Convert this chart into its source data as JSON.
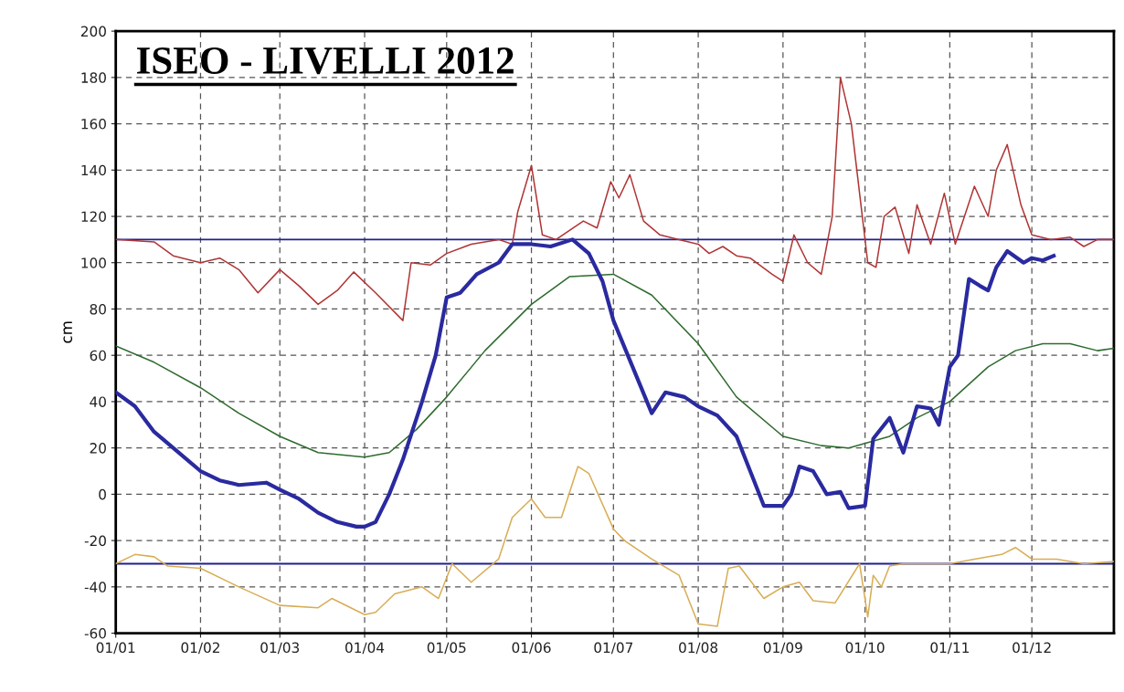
{
  "chart_data": {
    "type": "line",
    "title": "ISEO - LIVELLI 2012",
    "ylabel": "cm",
    "xlim": [
      "2012-01-01",
      "2012-12-31"
    ],
    "xticks": [
      {
        "value": "2012-01-01",
        "label": "01/01"
      },
      {
        "value": "2012-02-01",
        "label": "01/02"
      },
      {
        "value": "2012-03-01",
        "label": "01/03"
      },
      {
        "value": "2012-04-01",
        "label": "01/04"
      },
      {
        "value": "2012-05-01",
        "label": "01/05"
      },
      {
        "value": "2012-06-01",
        "label": "01/06"
      },
      {
        "value": "2012-07-01",
        "label": "01/07"
      },
      {
        "value": "2012-08-01",
        "label": "01/08"
      },
      {
        "value": "2012-09-01",
        "label": "01/09"
      },
      {
        "value": "2012-10-01",
        "label": "01/10"
      },
      {
        "value": "2012-11-01",
        "label": "01/11"
      },
      {
        "value": "2012-12-01",
        "label": "01/12"
      }
    ],
    "ylim": [
      -60,
      200
    ],
    "yticks": [
      -60,
      -40,
      -20,
      0,
      20,
      40,
      60,
      80,
      100,
      120,
      140,
      160,
      180,
      200
    ],
    "grid": true,
    "ref_lines": [
      {
        "axis": "y",
        "value": 110,
        "color": "#1f1f8f"
      },
      {
        "axis": "y",
        "value": -30,
        "color": "#1f1f8f"
      }
    ],
    "series": [
      {
        "color": "#b03535",
        "x": [
          "2012-01-01",
          "2012-01-15",
          "2012-01-22",
          "2012-02-01",
          "2012-02-08",
          "2012-02-15",
          "2012-02-22",
          "2012-03-01",
          "2012-03-08",
          "2012-03-15",
          "2012-03-22",
          "2012-03-28",
          "2012-04-05",
          "2012-04-15",
          "2012-04-18",
          "2012-04-25",
          "2012-05-01",
          "2012-05-10",
          "2012-05-20",
          "2012-05-25",
          "2012-05-27",
          "2012-06-01",
          "2012-06-05",
          "2012-06-10",
          "2012-06-20",
          "2012-06-25",
          "2012-06-30",
          "2012-07-03",
          "2012-07-07",
          "2012-07-12",
          "2012-07-18",
          "2012-07-25",
          "2012-08-01",
          "2012-08-05",
          "2012-08-10",
          "2012-08-15",
          "2012-08-20",
          "2012-08-28",
          "2012-09-01",
          "2012-09-05",
          "2012-09-10",
          "2012-09-15",
          "2012-09-19",
          "2012-09-22",
          "2012-09-26",
          "2012-10-02",
          "2012-10-05",
          "2012-10-08",
          "2012-10-12",
          "2012-10-17",
          "2012-10-20",
          "2012-10-25",
          "2012-10-30",
          "2012-11-03",
          "2012-11-10",
          "2012-11-15",
          "2012-11-18",
          "2012-11-22",
          "2012-11-27",
          "2012-12-01",
          "2012-12-08",
          "2012-12-15",
          "2012-12-20",
          "2012-12-25",
          "2012-12-31"
        ],
        "values": [
          110,
          109,
          103,
          100,
          102,
          97,
          87,
          97,
          90,
          82,
          88,
          96,
          87,
          75,
          100,
          99,
          104,
          108,
          110,
          108,
          122,
          142,
          112,
          110,
          118,
          115,
          135,
          128,
          138,
          118,
          112,
          110,
          108,
          104,
          107,
          103,
          102,
          95,
          92,
          112,
          100,
          95,
          120,
          180,
          160,
          100,
          98,
          120,
          124,
          104,
          125,
          108,
          130,
          108,
          133,
          120,
          140,
          151,
          125,
          112,
          110,
          111,
          107,
          110,
          110
        ]
      },
      {
        "color": "#2e6b2e",
        "x": [
          "2012-01-01",
          "2012-01-15",
          "2012-02-01",
          "2012-02-15",
          "2012-03-01",
          "2012-03-15",
          "2012-04-01",
          "2012-04-10",
          "2012-04-20",
          "2012-05-01",
          "2012-05-15",
          "2012-06-01",
          "2012-06-15",
          "2012-07-01",
          "2012-07-15",
          "2012-08-01",
          "2012-08-15",
          "2012-09-01",
          "2012-09-15",
          "2012-09-25",
          "2012-10-10",
          "2012-10-20",
          "2012-11-01",
          "2012-11-15",
          "2012-11-25",
          "2012-12-05",
          "2012-12-15",
          "2012-12-25",
          "2012-12-31"
        ],
        "values": [
          64,
          57,
          46,
          35,
          25,
          18,
          16,
          18,
          28,
          42,
          62,
          82,
          94,
          95,
          86,
          65,
          42,
          25,
          21,
          20,
          25,
          33,
          40,
          55,
          62,
          65,
          65,
          62,
          63
        ]
      },
      {
        "color": "#d8ad55",
        "x": [
          "2012-01-01",
          "2012-01-08",
          "2012-01-15",
          "2012-01-20",
          "2012-02-01",
          "2012-02-15",
          "2012-03-01",
          "2012-03-15",
          "2012-03-20",
          "2012-04-01",
          "2012-04-05",
          "2012-04-12",
          "2012-04-22",
          "2012-04-28",
          "2012-05-03",
          "2012-05-10",
          "2012-05-20",
          "2012-05-25",
          "2012-06-01",
          "2012-06-06",
          "2012-06-12",
          "2012-06-18",
          "2012-06-22",
          "2012-07-01",
          "2012-07-05",
          "2012-07-15",
          "2012-07-25",
          "2012-08-01",
          "2012-08-08",
          "2012-08-12",
          "2012-08-16",
          "2012-08-25",
          "2012-09-01",
          "2012-09-07",
          "2012-09-12",
          "2012-09-20",
          "2012-09-29",
          "2012-10-02",
          "2012-10-04",
          "2012-10-07",
          "2012-10-10",
          "2012-10-15",
          "2012-11-01",
          "2012-11-10",
          "2012-11-20",
          "2012-11-25",
          "2012-12-01",
          "2012-12-10",
          "2012-12-20",
          "2012-12-31"
        ],
        "values": [
          -30,
          -26,
          -27,
          -31,
          -32,
          -40,
          -48,
          -49,
          -45,
          -52,
          -51,
          -43,
          -40,
          -45,
          -30,
          -38,
          -28,
          -10,
          -2,
          -10,
          -10,
          12,
          9,
          -15,
          -20,
          -28,
          -35,
          -56,
          -57,
          -32,
          -31,
          -45,
          -40,
          -38,
          -46,
          -47,
          -30,
          -53,
          -35,
          -40,
          -31,
          -30,
          -30,
          -28,
          -26,
          -23,
          -28,
          -28,
          -30,
          -29
        ]
      },
      {
        "color": "#2a2aa0",
        "x": [
          "2012-01-01",
          "2012-01-08",
          "2012-01-15",
          "2012-01-22",
          "2012-02-01",
          "2012-02-08",
          "2012-02-15",
          "2012-02-25",
          "2012-03-01",
          "2012-03-08",
          "2012-03-15",
          "2012-03-22",
          "2012-03-29",
          "2012-04-01",
          "2012-04-05",
          "2012-04-10",
          "2012-04-15",
          "2012-04-22",
          "2012-04-27",
          "2012-05-01",
          "2012-05-06",
          "2012-05-12",
          "2012-05-20",
          "2012-05-25",
          "2012-06-01",
          "2012-06-08",
          "2012-06-16",
          "2012-06-22",
          "2012-06-27",
          "2012-07-01",
          "2012-07-08",
          "2012-07-15",
          "2012-07-20",
          "2012-07-27",
          "2012-08-01",
          "2012-08-08",
          "2012-08-15",
          "2012-08-20",
          "2012-08-25",
          "2012-09-01",
          "2012-09-04",
          "2012-09-07",
          "2012-09-12",
          "2012-09-17",
          "2012-09-22",
          "2012-09-25",
          "2012-10-01",
          "2012-10-04",
          "2012-10-10",
          "2012-10-15",
          "2012-10-20",
          "2012-10-25",
          "2012-10-28",
          "2012-11-01",
          "2012-11-04",
          "2012-11-08",
          "2012-11-12",
          "2012-11-15",
          "2012-11-18",
          "2012-11-22",
          "2012-11-28",
          "2012-12-01",
          "2012-12-05",
          "2012-12-09"
        ],
        "values": [
          44,
          38,
          27,
          20,
          10,
          6,
          4,
          5,
          2,
          -2,
          -8,
          -12,
          -14,
          -14,
          -12,
          0,
          15,
          40,
          60,
          85,
          87,
          95,
          100,
          108,
          108,
          107,
          110,
          104,
          92,
          75,
          55,
          35,
          44,
          42,
          38,
          34,
          25,
          10,
          -5,
          -5,
          0,
          12,
          10,
          0,
          1,
          -6,
          -5,
          24,
          33,
          18,
          38,
          37,
          30,
          55,
          60,
          93,
          90,
          88,
          98,
          105,
          100,
          102,
          101,
          103
        ]
      }
    ]
  }
}
